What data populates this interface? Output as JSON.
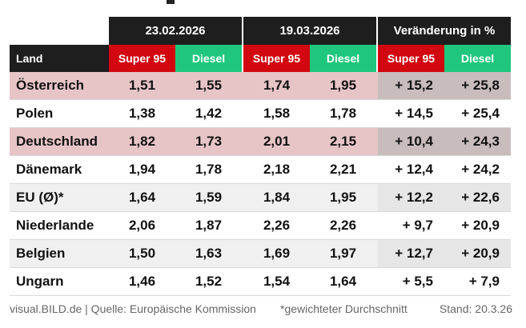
{
  "chart_data": {
    "type": "table",
    "date_groups": [
      "23.02.2026",
      "19.03.2026",
      "Veränderung in %"
    ],
    "columns": [
      "Land",
      "Super 95",
      "Diesel",
      "Super 95",
      "Diesel",
      "Super 95",
      "Diesel"
    ],
    "rows": [
      {
        "land": "Österreich",
        "values": [
          "1,51",
          "1,55",
          "1,74",
          "1,95",
          "+ 15,2",
          "+ 25,8"
        ]
      },
      {
        "land": "Polen",
        "values": [
          "1,38",
          "1,42",
          "1,58",
          "1,78",
          "+ 14,5",
          "+ 25,4"
        ]
      },
      {
        "land": "Deutschland",
        "values": [
          "1,82",
          "1,73",
          "2,01",
          "2,15",
          "+ 10,4",
          "+ 24,3"
        ]
      },
      {
        "land": "Dänemark",
        "values": [
          "1,94",
          "1,78",
          "2,18",
          "2,21",
          "+ 12,4",
          "+ 24,2"
        ]
      },
      {
        "land": "EU (Ø)*",
        "values": [
          "1,64",
          "1,59",
          "1,84",
          "1,95",
          "+ 12,2",
          "+ 22,6"
        ]
      },
      {
        "land": "Niederlande",
        "values": [
          "2,06",
          "1,87",
          "2,26",
          "2,26",
          "+ 9,7",
          "+ 20,9"
        ]
      },
      {
        "land": "Belgien",
        "values": [
          "1,50",
          "1,63",
          "1,69",
          "1,97",
          "+ 12,7",
          "+ 20,9"
        ]
      },
      {
        "land": "Ungarn",
        "values": [
          "1,46",
          "1,52",
          "1,54",
          "1,64",
          "+ 5,5",
          "+ 7,9"
        ]
      }
    ],
    "highlighted_rows": [
      "Österreich",
      "Deutschland"
    ],
    "colors": {
      "super95": "#d2070f",
      "diesel": "#1fc77e",
      "header": "#1e1e1e",
      "highlight": "#e7c5c7"
    }
  },
  "footer": {
    "source": "visual.BILD.de | Quelle: Europäische Kommission",
    "note": "*gewichteter Durchschnitt",
    "date": "Stand: 20.3.26"
  }
}
